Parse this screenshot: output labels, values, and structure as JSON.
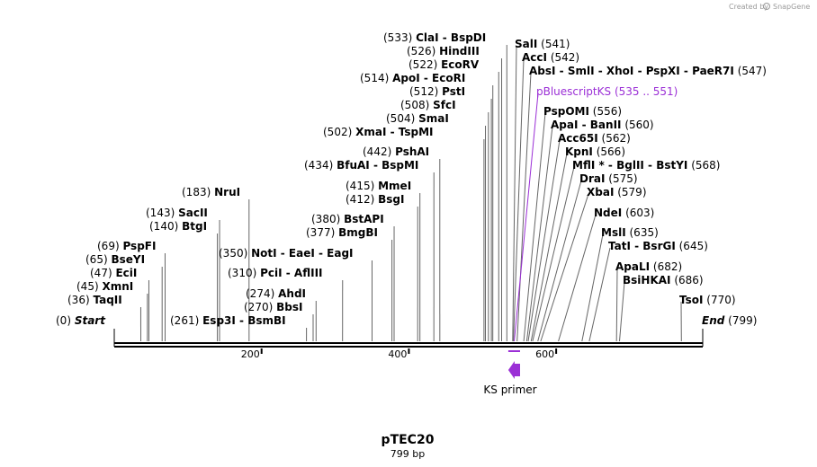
{
  "credit": {
    "text": "Created by",
    "brand": "SnapGene"
  },
  "plasmid": {
    "name": "pTEC20",
    "length_label": "799 bp",
    "length_bp": 799
  },
  "colors": {
    "feature": "#9b2fd6",
    "backbone": "#000000",
    "leader": "#666666"
  },
  "ticks": [
    {
      "bp": 200,
      "label": "200"
    },
    {
      "bp": 400,
      "label": "400"
    },
    {
      "bp": 600,
      "label": "600"
    }
  ],
  "sites": [
    {
      "text": "(0)",
      "enzymes": "Start",
      "bp": 0,
      "kind": "end"
    },
    {
      "text": "(36)",
      "enzymes": "TaqII",
      "bp": 36
    },
    {
      "text": "(45)",
      "enzymes": "XmnI",
      "bp": 45
    },
    {
      "text": "(47)",
      "enzymes": "EciI",
      "bp": 47
    },
    {
      "text": "(65)",
      "enzymes": "BseYI",
      "bp": 65
    },
    {
      "text": "(69)",
      "enzymes": "PspFI",
      "bp": 69
    },
    {
      "text": "(140)",
      "enzymes": "BtgI",
      "bp": 140
    },
    {
      "text": "(143)",
      "enzymes": "SacII",
      "bp": 143
    },
    {
      "text": "(183)",
      "enzymes": "NruI",
      "bp": 183
    },
    {
      "text": "(261)",
      "enzymes": "Esp3I  -  BsmBI",
      "bp": 261
    },
    {
      "text": "(270)",
      "enzymes": "BbsI",
      "bp": 270
    },
    {
      "text": "(274)",
      "enzymes": "AhdI",
      "bp": 274
    },
    {
      "text": "(310)",
      "enzymes": "PciI  -  AflIII",
      "bp": 310
    },
    {
      "text": "(350)",
      "enzymes": "NotI  -  EaeI  -  EagI",
      "bp": 350
    },
    {
      "text": "(377)",
      "enzymes": "BmgBI",
      "bp": 377
    },
    {
      "text": "(380)",
      "enzymes": "BstAPI",
      "bp": 380
    },
    {
      "text": "(412)",
      "enzymes": "BsgI",
      "bp": 412
    },
    {
      "text": "(415)",
      "enzymes": "MmeI",
      "bp": 415
    },
    {
      "text": "(434)",
      "enzymes": "BfuAI  -  BspMI",
      "bp": 434
    },
    {
      "text": "(442)",
      "enzymes": "PshAI",
      "bp": 442
    },
    {
      "text": "(502)",
      "enzymes": "XmaI  -  TspMI",
      "bp": 502
    },
    {
      "text": "(504)",
      "enzymes": "SmaI",
      "bp": 504
    },
    {
      "text": "(508)",
      "enzymes": "SfcI",
      "bp": 508
    },
    {
      "text": "(512)",
      "enzymes": "PstI",
      "bp": 512
    },
    {
      "text": "(514)",
      "enzymes": "ApoI  -  EcoRI",
      "bp": 514
    },
    {
      "text": "(522)",
      "enzymes": "EcoRV",
      "bp": 522
    },
    {
      "text": "(526)",
      "enzymes": "HindIII",
      "bp": 526
    },
    {
      "text": "(533)",
      "enzymes": "ClaI  -  BspDI",
      "bp": 533
    },
    {
      "text": "(541)",
      "enzymes": "SalI",
      "bp": 541
    },
    {
      "text": "(542)",
      "enzymes": "AccI",
      "bp": 542
    },
    {
      "text": "(547)",
      "enzymes": "AbsI  -  SmlI  -  XhoI  -  PspXI  -  PaeR7I",
      "bp": 547
    },
    {
      "text": "(535 .. 551)",
      "enzymes": "pBluescriptKS",
      "bp": 543,
      "kind": "feature"
    },
    {
      "text": "(556)",
      "enzymes": "PspOMI",
      "bp": 556
    },
    {
      "text": "(560)",
      "enzymes": "ApaI  -  BanII",
      "bp": 560
    },
    {
      "text": "(562)",
      "enzymes": "Acc65I",
      "bp": 562
    },
    {
      "text": "(566)",
      "enzymes": "KpnI",
      "bp": 566
    },
    {
      "text": "(568)",
      "enzymes": "MflI *  -  BglII  -  BstYI",
      "bp": 568
    },
    {
      "text": "(575)",
      "enzymes": "DraI",
      "bp": 575
    },
    {
      "text": "(579)",
      "enzymes": "XbaI",
      "bp": 579
    },
    {
      "text": "(603)",
      "enzymes": "NdeI",
      "bp": 603
    },
    {
      "text": "(635)",
      "enzymes": "MslI",
      "bp": 635
    },
    {
      "text": "(645)",
      "enzymes": "TatI  -  BsrGI",
      "bp": 645
    },
    {
      "text": "(682)",
      "enzymes": "ApaLI",
      "bp": 682
    },
    {
      "text": "(686)",
      "enzymes": "BsiHKAI",
      "bp": 686
    },
    {
      "text": "(770)",
      "enzymes": "TsoI",
      "bp": 770
    },
    {
      "text": "(799)",
      "enzymes": "End",
      "bp": 799,
      "kind": "end"
    }
  ],
  "primer": {
    "label": "KS primer",
    "start_bp": 535,
    "end_bp": 551,
    "direction": "reverse"
  }
}
